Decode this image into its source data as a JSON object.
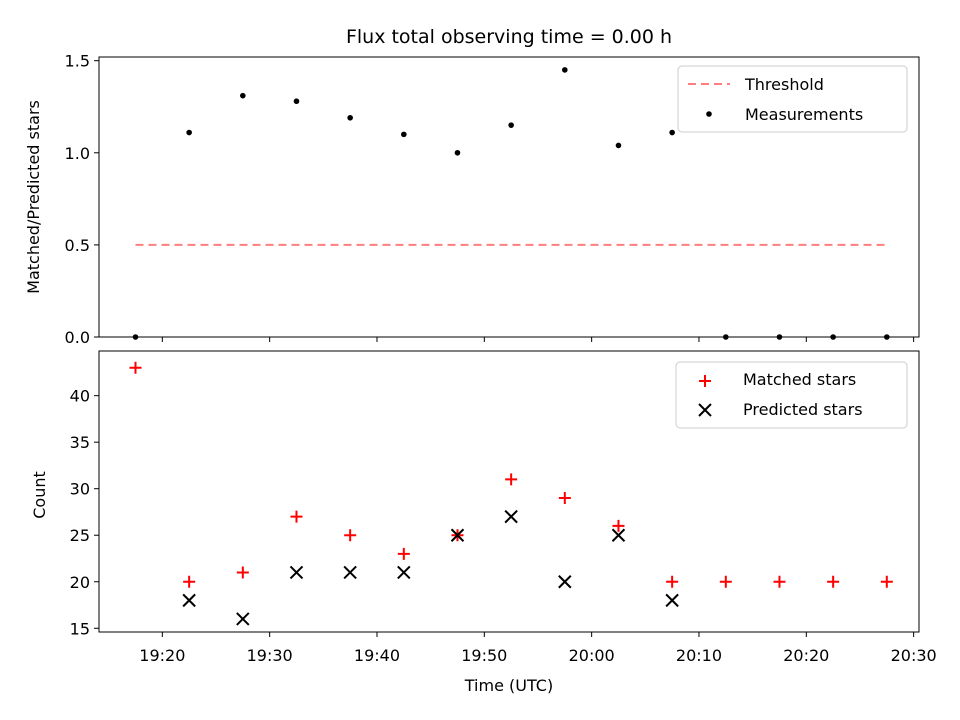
{
  "chart_data": [
    {
      "type": "scatter",
      "title": "Flux total observing time = 0.00 h",
      "xlabel": "",
      "ylabel": "Matched/Predicted stars",
      "ylim": [
        0,
        1.52
      ],
      "yticks": [
        0.0,
        0.5,
        1.0,
        1.5
      ],
      "ytick_labels": [
        "0.0",
        "0.5",
        "1.0",
        "1.5"
      ],
      "xlim_minutes": [
        1154.1,
        1230.5
      ],
      "x_minutes": [
        1157.5,
        1162.5,
        1167.5,
        1172.5,
        1177.5,
        1182.5,
        1187.5,
        1192.5,
        1197.5,
        1202.5,
        1207.5,
        1212.5,
        1217.5,
        1222.5,
        1227.5
      ],
      "series": [
        {
          "name": "Threshold",
          "style": "dashed-line",
          "color": "#ff7f7f",
          "x_range": [
            1157.5,
            1227.5
          ],
          "value": 0.5
        },
        {
          "name": "Measurements",
          "style": "point",
          "color": "#000000",
          "values": [
            0.0,
            1.11,
            1.31,
            1.28,
            1.19,
            1.1,
            1.0,
            1.15,
            1.45,
            1.04,
            1.11,
            0.0,
            0.0,
            0.0,
            0.0
          ]
        }
      ],
      "legend": "top-right"
    },
    {
      "type": "scatter",
      "title": "",
      "xlabel": "Time (UTC)",
      "ylabel": "Count",
      "ylim": [
        14.6,
        44.8
      ],
      "yticks": [
        15,
        20,
        25,
        30,
        35,
        40
      ],
      "ytick_labels": [
        "15",
        "20",
        "25",
        "30",
        "35",
        "40"
      ],
      "xticks_minutes": [
        1160,
        1170,
        1180,
        1190,
        1200,
        1210,
        1220,
        1230
      ],
      "xtick_labels": [
        "19:20",
        "19:30",
        "19:40",
        "19:50",
        "20:00",
        "20:10",
        "20:20",
        "20:30"
      ],
      "xlim_minutes": [
        1154.1,
        1230.5
      ],
      "series": [
        {
          "name": "Matched stars",
          "marker": "+",
          "color": "#ff0000",
          "x_minutes": [
            1157.5,
            1162.5,
            1167.5,
            1172.5,
            1177.5,
            1182.5,
            1187.5,
            1192.5,
            1197.5,
            1202.5,
            1207.5,
            1212.5,
            1217.5,
            1222.5,
            1227.5
          ],
          "values": [
            43,
            20,
            21,
            27,
            25,
            23,
            25,
            31,
            29,
            26,
            20,
            20,
            20,
            20,
            20
          ]
        },
        {
          "name": "Predicted stars",
          "marker": "x",
          "color": "#000000",
          "x_minutes": [
            1162.5,
            1167.5,
            1172.5,
            1177.5,
            1182.5,
            1187.5,
            1192.5,
            1197.5,
            1202.5,
            1207.5
          ],
          "values": [
            18,
            16,
            21,
            21,
            21,
            25,
            27,
            20,
            25,
            18
          ]
        }
      ],
      "legend": "top-right"
    }
  ]
}
